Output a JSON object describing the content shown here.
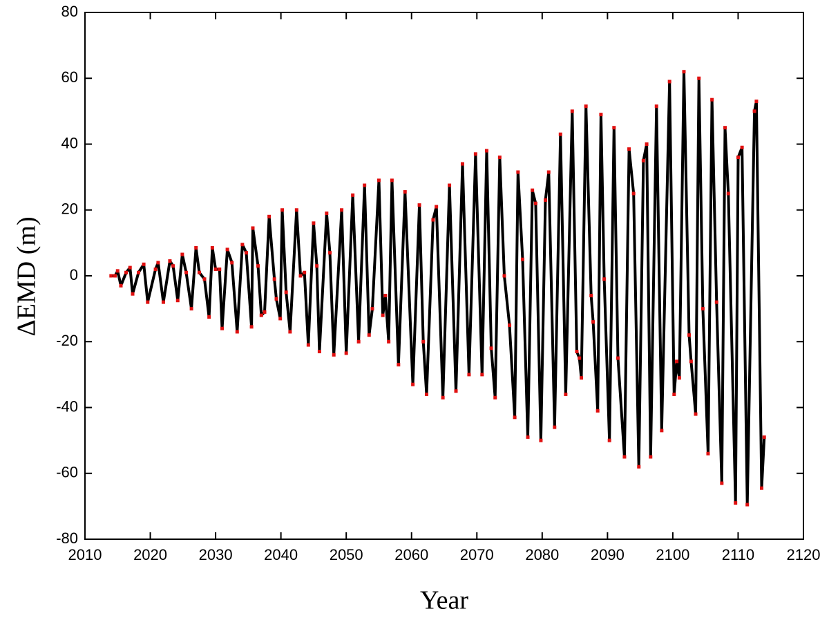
{
  "chart_data": {
    "type": "line",
    "x_label": "Year",
    "y_label": "ΔEMD (m)",
    "xlim": [
      2010,
      2120
    ],
    "xticks": [
      2010,
      2020,
      2030,
      2040,
      2050,
      2060,
      2070,
      2080,
      2090,
      2100,
      2110,
      2120
    ],
    "ylim": [
      -80,
      80
    ],
    "yticks": [
      -80,
      -60,
      -40,
      -20,
      0,
      20,
      40,
      60,
      80
    ],
    "color": "#000000",
    "marker_color": "#e01010",
    "x": [
      2014.0,
      2014.6,
      2015.0,
      2015.5,
      2016.3,
      2016.9,
      2017.3,
      2018.2,
      2019.0,
      2019.6,
      2020.8,
      2021.2,
      2022.0,
      2023.0,
      2023.5,
      2024.2,
      2024.9,
      2025.5,
      2026.3,
      2027.0,
      2027.5,
      2028.3,
      2029.0,
      2029.5,
      2030.0,
      2030.6,
      2031.0,
      2031.8,
      2032.5,
      2033.3,
      2034.1,
      2034.7,
      2035.5,
      2035.7,
      2036.5,
      2037.0,
      2037.5,
      2038.2,
      2039.0,
      2039.3,
      2039.9,
      2040.2,
      2040.8,
      2041.4,
      2042.4,
      2043.0,
      2043.6,
      2044.2,
      2045.0,
      2045.5,
      2045.9,
      2047.0,
      2047.5,
      2048.1,
      2049.3,
      2050.0,
      2051.0,
      2051.9,
      2052.8,
      2053.5,
      2054.0,
      2055.0,
      2055.6,
      2056.0,
      2056.5,
      2057.0,
      2058.0,
      2059.0,
      2060.2,
      2061.2,
      2061.8,
      2062.3,
      2063.3,
      2063.8,
      2064.8,
      2065.8,
      2066.8,
      2067.8,
      2068.8,
      2069.8,
      2070.8,
      2071.5,
      2072.2,
      2072.8,
      2073.5,
      2074.2,
      2075.0,
      2075.8,
      2076.3,
      2077.0,
      2077.8,
      2078.5,
      2079.0,
      2079.8,
      2080.5,
      2081.0,
      2081.9,
      2082.8,
      2083.6,
      2084.6,
      2085.3,
      2085.7,
      2086.0,
      2086.7,
      2087.5,
      2087.8,
      2088.5,
      2089.0,
      2089.5,
      2090.3,
      2091.0,
      2091.6,
      2092.6,
      2093.3,
      2094.0,
      2094.8,
      2095.5,
      2096.0,
      2096.6,
      2097.5,
      2098.3,
      2099.5,
      2100.2,
      2100.6,
      2101.0,
      2101.7,
      2102.5,
      2102.8,
      2103.5,
      2104.0,
      2104.6,
      2105.4,
      2106.0,
      2106.7,
      2107.5,
      2108.0,
      2108.5,
      2109.6,
      2110.0,
      2110.6,
      2111.4,
      2112.5,
      2112.8,
      2113.6,
      2114.0
    ],
    "values": [
      0,
      0,
      1.5,
      -3,
      1,
      2.5,
      -5.5,
      1,
      3.5,
      -8,
      2,
      4,
      -8,
      4.5,
      3,
      -7.5,
      6.5,
      1,
      -10,
      8.5,
      1,
      -1,
      -12.5,
      8.5,
      2,
      2,
      -16,
      8,
      4,
      -17,
      9.5,
      7,
      -15.5,
      14.5,
      3,
      -12,
      -11,
      18,
      -1,
      -7,
      -13,
      20,
      -5,
      -17,
      20,
      0,
      1,
      -21,
      16,
      3,
      -23,
      19,
      7,
      -24,
      20,
      -23.5,
      24.5,
      -20,
      27.5,
      -18,
      -10,
      29,
      -12,
      -6,
      -20,
      29,
      -27,
      25.5,
      -33,
      21.5,
      -20,
      -36,
      17,
      21,
      -37,
      27.5,
      -35,
      34,
      -30,
      37,
      -30,
      38,
      -22,
      -37,
      36,
      0,
      -15,
      -43,
      31.5,
      5,
      -49,
      26,
      22,
      -50,
      23,
      31.5,
      -46,
      43,
      -36,
      50,
      -23,
      -25,
      -31,
      51.5,
      -6,
      -14,
      -41,
      49,
      -1,
      -50,
      45,
      -25,
      -55,
      38.5,
      25,
      -58,
      35,
      40,
      -55,
      51.5,
      -47,
      59,
      -36,
      -26,
      -31,
      62,
      -18,
      -26,
      -42,
      60,
      -10,
      -54,
      53.5,
      -8,
      -63,
      45,
      25,
      -69,
      36,
      39,
      -69.5,
      50,
      53,
      -64.5,
      -49
    ]
  }
}
